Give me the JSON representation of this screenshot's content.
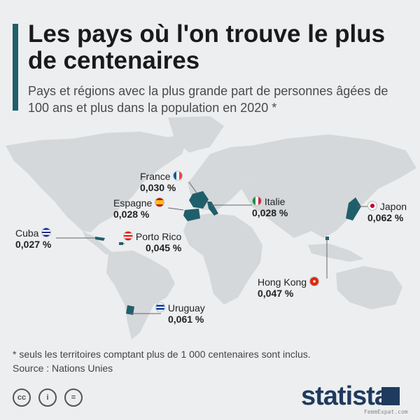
{
  "title": "Les pays où l'on trouve le plus de centenaires",
  "subtitle": "Pays et régions avec la plus grande part de personnes âgées de 100 ans et plus dans la population en 2020 *",
  "highlight_color": "#1f5f6b",
  "land_color": "#d5d8da",
  "countries": [
    {
      "name": "France",
      "value": "0,030 %",
      "flag": "fr-flag-icon"
    },
    {
      "name": "Espagne",
      "value": "0,028 %",
      "flag": "es-flag-icon"
    },
    {
      "name": "Italie",
      "value": "0,028 %",
      "flag": "it-flag-icon"
    },
    {
      "name": "Japon",
      "value": "0,062 %",
      "flag": "jp-flag-icon"
    },
    {
      "name": "Cuba",
      "value": "0,027 %",
      "flag": "cu-flag-icon"
    },
    {
      "name": "Porto Rico",
      "value": "0,045 %",
      "flag": "pr-flag-icon"
    },
    {
      "name": "Hong Kong",
      "value": "0,047 %",
      "flag": "hk-flag-icon"
    },
    {
      "name": "Uruguay",
      "value": "0,061 %",
      "flag": "uy-flag-icon"
    }
  ],
  "footnote": "* seuls les territoires comptant plus de 1 000 centenaires sont inclus.",
  "source": "Source : Nations Unies",
  "license_icons": [
    "cc-icon",
    "attribution-icon",
    "no-derivatives-icon"
  ],
  "license_glyphs": [
    "cc",
    "i",
    "="
  ],
  "brand": "statista",
  "watermark": "FemmExpat.com"
}
